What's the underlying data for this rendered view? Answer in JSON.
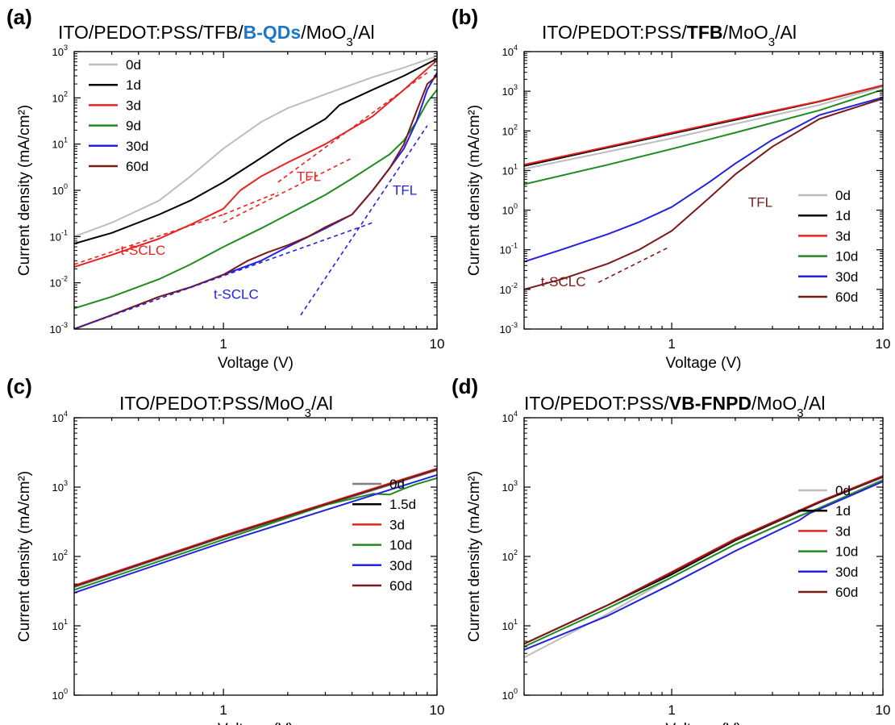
{
  "figure": {
    "panels": [
      {
        "letter": "(a)",
        "title_parts": [
          {
            "text": "ITO/PEDOT:PSS/TFB/"
          },
          {
            "text": "B-QDs",
            "bold": true,
            "color": "#1F77C8"
          },
          {
            "text": "/MoO"
          },
          {
            "text": "3",
            "sub": true
          },
          {
            "text": "/Al"
          }
        ]
      },
      {
        "letter": "(b)",
        "title_parts": [
          {
            "text": "ITO/PEDOT:PSS/"
          },
          {
            "text": "TFB",
            "bold": true
          },
          {
            "text": "/MoO"
          },
          {
            "text": "3",
            "sub": true
          },
          {
            "text": "/Al"
          }
        ]
      },
      {
        "letter": "(c)",
        "title_parts": [
          {
            "text": "ITO/PEDOT:PSS/MoO"
          },
          {
            "text": "3",
            "sub": true
          },
          {
            "text": "/Al"
          }
        ]
      },
      {
        "letter": "(d)",
        "title_parts": [
          {
            "text": "ITO/PEDOT:PSS/"
          },
          {
            "text": "VB-FNPD",
            "bold": true
          },
          {
            "text": "/MoO"
          },
          {
            "text": "3",
            "sub": true
          },
          {
            "text": "/Al"
          }
        ]
      }
    ]
  },
  "chart_data": [
    {
      "type": "line",
      "panel": "(a)",
      "xlabel": "Voltage (V)",
      "ylabel": "Current density (mA/cm²)",
      "xscale": "log",
      "yscale": "log",
      "xlim": [
        0.2,
        10
      ],
      "ylim": [
        0.001,
        1000
      ],
      "x_ticks": [
        "1",
        "10"
      ],
      "y_ticks": [
        "10⁻³",
        "10⁻²",
        "10⁻¹",
        "10⁰",
        "10¹",
        "10²",
        "10³"
      ],
      "legend_position": "top-left",
      "series": [
        {
          "name": "0d",
          "color": "#BDBDBD",
          "x": [
            0.2,
            0.3,
            0.5,
            0.7,
            1,
            1.5,
            2,
            3,
            5,
            7,
            10
          ],
          "y": [
            0.1,
            0.2,
            0.6,
            2,
            8,
            30,
            60,
            120,
            280,
            450,
            800
          ]
        },
        {
          "name": "1d",
          "color": "#000000",
          "x": [
            0.2,
            0.3,
            0.5,
            0.7,
            1,
            1.5,
            2,
            3,
            3.5,
            5,
            7,
            10
          ],
          "y": [
            0.07,
            0.12,
            0.3,
            0.6,
            1.5,
            5,
            12,
            35,
            70,
            150,
            300,
            700
          ]
        },
        {
          "name": "3d",
          "color": "#E8231F",
          "x": [
            0.2,
            0.3,
            0.5,
            0.7,
            1,
            1.2,
            1.5,
            2,
            3,
            5,
            7,
            10
          ],
          "y": [
            0.022,
            0.04,
            0.09,
            0.18,
            0.4,
            1,
            2,
            4,
            10,
            40,
            150,
            650
          ]
        },
        {
          "name": "9d",
          "color": "#1E8C1E",
          "x": [
            0.2,
            0.3,
            0.5,
            0.7,
            1,
            1.5,
            2,
            3,
            4,
            5,
            6,
            7,
            8,
            9,
            10
          ],
          "y": [
            0.0028,
            0.005,
            0.012,
            0.025,
            0.06,
            0.15,
            0.3,
            0.8,
            1.8,
            3.5,
            6,
            12,
            30,
            80,
            150
          ]
        },
        {
          "name": "30d",
          "color": "#2222E0",
          "x": [
            0.2,
            0.3,
            0.5,
            0.7,
            1,
            1.5,
            2,
            3,
            4,
            5,
            6,
            7,
            8,
            9,
            10
          ],
          "y": [
            0.001,
            0.002,
            0.005,
            0.008,
            0.015,
            0.03,
            0.06,
            0.15,
            0.3,
            1,
            3,
            8,
            30,
            150,
            350
          ]
        },
        {
          "name": "60d",
          "color": "#7B1A1A",
          "x": [
            0.2,
            0.3,
            0.5,
            0.7,
            1,
            1.3,
            1.6,
            2,
            2.5,
            3,
            4,
            5,
            6,
            7,
            8,
            9,
            10
          ],
          "y": [
            0.001,
            0.002,
            0.005,
            0.008,
            0.015,
            0.03,
            0.045,
            0.065,
            0.1,
            0.16,
            0.3,
            1,
            3,
            10,
            50,
            200,
            300
          ]
        }
      ],
      "fits": [
        {
          "color": "#E8231F",
          "x": [
            0.2,
            1.0
          ],
          "y": [
            0.025,
            0.3
          ]
        },
        {
          "color": "#E8231F",
          "x": [
            1.0,
            4.0
          ],
          "y": [
            0.2,
            5.0
          ]
        },
        {
          "color": "#E8231F",
          "x": [
            1.0,
            1.8
          ],
          "y": [
            0.3,
            0.9
          ]
        },
        {
          "color": "#E8231F",
          "x": [
            1.8,
            9.0
          ],
          "y": [
            1.5,
            350
          ]
        },
        {
          "color": "#2222E0",
          "x": [
            0.2,
            5.0
          ],
          "y": [
            0.001,
            0.2
          ]
        },
        {
          "color": "#2222E0",
          "x": [
            2.3,
            9.0
          ],
          "y": [
            0.002,
            25
          ]
        }
      ],
      "annotations": [
        {
          "text": "TFL",
          "color": "#E8231F",
          "x": 2.2,
          "y": 1.6
        },
        {
          "text": "TFL",
          "color": "#2222E0",
          "x": 6.2,
          "y": 0.8
        },
        {
          "text": "t-SCLC",
          "color": "#E8231F",
          "x": 0.33,
          "y": 0.04
        },
        {
          "text": "t-SCLC",
          "color": "#2222E0",
          "x": 0.9,
          "y": 0.0045
        }
      ]
    },
    {
      "type": "line",
      "panel": "(b)",
      "xlabel": "Voltage (V)",
      "ylabel": "Current density (mA/cm²)",
      "xscale": "log",
      "yscale": "log",
      "xlim": [
        0.2,
        10
      ],
      "ylim": [
        0.001,
        10000
      ],
      "x_ticks": [
        "1",
        "10"
      ],
      "y_ticks": [
        "10⁻³",
        "10⁻²",
        "10⁻¹",
        "10⁰",
        "10¹",
        "10²",
        "10³",
        "10⁴"
      ],
      "legend_position": "bottom-right",
      "series": [
        {
          "name": "0d",
          "color": "#BDBDBD",
          "x": [
            0.2,
            0.5,
            1,
            2,
            5,
            10
          ],
          "y": [
            11,
            30,
            65,
            150,
            450,
            1300
          ]
        },
        {
          "name": "1d",
          "color": "#000000",
          "x": [
            0.2,
            0.5,
            1,
            2,
            5,
            10
          ],
          "y": [
            13,
            38,
            85,
            190,
            550,
            1400
          ]
        },
        {
          "name": "3d",
          "color": "#E8231F",
          "x": [
            0.2,
            0.5,
            1,
            2,
            5,
            10
          ],
          "y": [
            14,
            40,
            90,
            200,
            560,
            1420
          ]
        },
        {
          "name": "10d",
          "color": "#1E8C1E",
          "x": [
            0.2,
            0.5,
            1,
            2,
            5,
            10
          ],
          "y": [
            4.5,
            14,
            35,
            90,
            330,
            1100
          ]
        },
        {
          "name": "30d",
          "color": "#2222E0",
          "x": [
            0.2,
            0.3,
            0.5,
            0.7,
            1,
            1.5,
            2,
            3,
            5,
            10
          ],
          "y": [
            0.05,
            0.1,
            0.25,
            0.5,
            1.2,
            5,
            15,
            60,
            250,
            700
          ]
        },
        {
          "name": "60d",
          "color": "#7B1A1A",
          "x": [
            0.2,
            0.3,
            0.5,
            0.7,
            1,
            1.5,
            2,
            3,
            5,
            10
          ],
          "y": [
            0.01,
            0.018,
            0.045,
            0.1,
            0.3,
            2,
            8,
            40,
            200,
            650
          ]
        }
      ],
      "fits": [
        {
          "color": "#7B1A1A",
          "x": [
            0.45,
            0.95
          ],
          "y": [
            0.015,
            0.11
          ]
        }
      ],
      "annotations": [
        {
          "text": "TFL",
          "color": "#7B1A1A",
          "x": 2.3,
          "y": 1.2
        },
        {
          "text": "t-SCLC",
          "color": "#7B1A1A",
          "x": 0.24,
          "y": 0.012
        }
      ]
    },
    {
      "type": "line",
      "panel": "(c)",
      "xlabel": "Voltage (V)",
      "ylabel": "Current density (mA/cm²)",
      "xscale": "log",
      "yscale": "log",
      "xlim": [
        0.2,
        10
      ],
      "ylim": [
        1,
        10000
      ],
      "x_ticks": [
        "1",
        "10"
      ],
      "y_ticks": [
        "10⁰",
        "10¹",
        "10²",
        "10³",
        "10⁴"
      ],
      "legend_position": "bottom-right",
      "series": [
        {
          "name": "0d",
          "color": "#808080",
          "x": [
            0.2,
            1,
            10
          ],
          "y": [
            36,
            190,
            1750
          ]
        },
        {
          "name": "1.5d",
          "color": "#000000",
          "x": [
            0.2,
            1,
            10
          ],
          "y": [
            37,
            195,
            1800
          ]
        },
        {
          "name": "3d",
          "color": "#E8231F",
          "x": [
            0.2,
            1,
            10
          ],
          "y": [
            38,
            200,
            1850
          ]
        },
        {
          "name": "10d",
          "color": "#1E8C1E",
          "x": [
            0.2,
            1,
            3,
            5,
            6,
            7,
            8,
            10
          ],
          "y": [
            33,
            175,
            550,
            800,
            780,
            950,
            1100,
            1350
          ]
        },
        {
          "name": "30d",
          "color": "#2222E0",
          "x": [
            0.2,
            1,
            10
          ],
          "y": [
            30,
            160,
            1500
          ]
        },
        {
          "name": "60d",
          "color": "#7B1A1A",
          "x": [
            0.2,
            1,
            10
          ],
          "y": [
            37,
            195,
            1800
          ]
        }
      ]
    },
    {
      "type": "line",
      "panel": "(d)",
      "xlabel": "Voltage (V)",
      "ylabel": "Current density (mA/cm²)",
      "xscale": "log",
      "yscale": "log",
      "xlim": [
        0.2,
        10
      ],
      "ylim": [
        1,
        10000
      ],
      "x_ticks": [
        "1",
        "10"
      ],
      "y_ticks": [
        "10⁰",
        "10¹",
        "10²",
        "10³",
        "10⁴"
      ],
      "legend_position": "bottom-right",
      "series": [
        {
          "name": "0d",
          "color": "#BDBDBD",
          "x": [
            0.2,
            0.5,
            1,
            2,
            5,
            10
          ],
          "y": [
            3.5,
            15,
            50,
            150,
            500,
            1300
          ]
        },
        {
          "name": "1d",
          "color": "#000000",
          "x": [
            0.2,
            0.5,
            1,
            2,
            5,
            10
          ],
          "y": [
            5.5,
            20,
            55,
            170,
            600,
            1400
          ]
        },
        {
          "name": "3d",
          "color": "#E8231F",
          "x": [
            0.2,
            0.5,
            1,
            2,
            5,
            10
          ],
          "y": [
            5.5,
            20,
            60,
            180,
            620,
            1450
          ]
        },
        {
          "name": "10d",
          "color": "#1E8C1E",
          "x": [
            0.2,
            0.5,
            1,
            2,
            4,
            5,
            10
          ],
          "y": [
            5,
            18,
            50,
            150,
            380,
            500,
            1250
          ]
        },
        {
          "name": "30d",
          "color": "#2222E0",
          "x": [
            0.2,
            0.5,
            1,
            2,
            4,
            4.5,
            5,
            10
          ],
          "y": [
            4.5,
            14,
            40,
            120,
            330,
            420,
            480,
            1200
          ]
        },
        {
          "name": "60d",
          "color": "#7B1A1A",
          "x": [
            0.2,
            0.5,
            1,
            2,
            5,
            10
          ],
          "y": [
            5.5,
            20,
            58,
            175,
            610,
            1420
          ]
        }
      ]
    }
  ]
}
